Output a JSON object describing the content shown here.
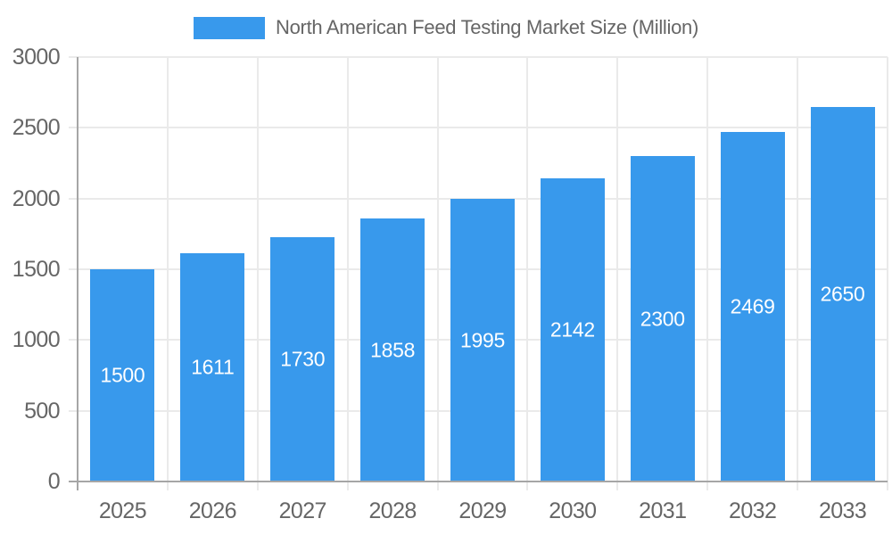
{
  "chart_data": {
    "type": "bar",
    "title": "North American Feed Testing Market Size (Million)",
    "categories": [
      "2025",
      "2026",
      "2027",
      "2028",
      "2029",
      "2030",
      "2031",
      "2032",
      "2033"
    ],
    "values": [
      1500,
      1611,
      1730,
      1858,
      1995,
      2142,
      2300,
      2469,
      2650
    ],
    "yticks": [
      0,
      500,
      1000,
      1500,
      2000,
      2500,
      3000
    ],
    "ylim": [
      0,
      3000
    ],
    "xlabel": "",
    "ylabel": "",
    "grid": true,
    "legend_position": "top",
    "value_label_position": "inside-center"
  },
  "colors": {
    "bar_fill": "#3899EC",
    "value_label_text": "#FFFFFF",
    "axis_text": "#666666",
    "legend_text": "#666666",
    "gridline": "#EAEAEA",
    "axis_line": "#A6A6A6",
    "background": "#FFFFFF"
  }
}
